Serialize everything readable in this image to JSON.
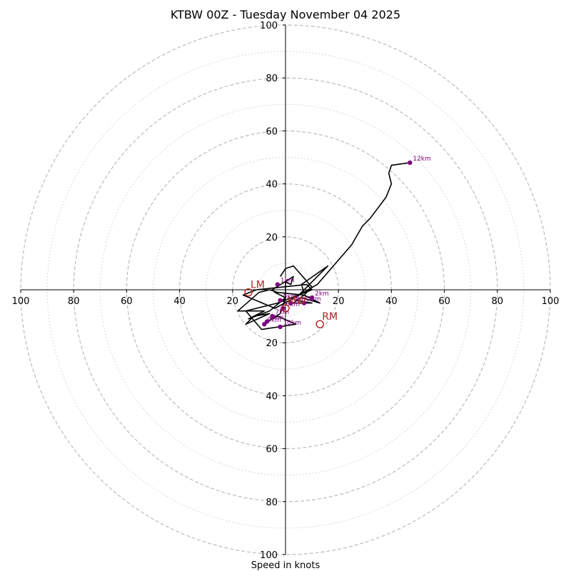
{
  "chart_data": {
    "type": "hodograph",
    "title": "KTBW 00Z - Tuesday November 04 2025",
    "xlabel": "Speed in knots",
    "rings": {
      "dashed": [
        20,
        40,
        60,
        80,
        100
      ],
      "dotted": [
        10,
        30,
        50,
        70,
        90
      ]
    },
    "axis_max": 100,
    "ticks": {
      "x": [
        -100,
        -80,
        -60,
        -40,
        -20,
        20,
        40,
        60,
        80,
        100
      ],
      "x_labels": [
        "100",
        "80",
        "60",
        "40",
        "20",
        "20",
        "40",
        "60",
        "80",
        "100"
      ],
      "y": [
        100,
        80,
        60,
        40,
        20,
        -20,
        -40,
        -60,
        -80,
        -100
      ],
      "y_labels": [
        "100",
        "80",
        "60",
        "40",
        "20",
        "20",
        "40",
        "60",
        "80",
        "100"
      ]
    },
    "hodograph": {
      "u": [
        -2,
        0,
        3,
        10,
        7,
        3,
        10,
        4,
        6,
        13,
        7,
        -3,
        -6,
        -10,
        -18,
        -8,
        -12,
        -15,
        -6,
        -12,
        -14,
        -6,
        0,
        0,
        2,
        3,
        -5,
        -4,
        0,
        -1,
        -2,
        -7,
        -3,
        4,
        -9,
        -15,
        -3,
        10,
        8,
        -11,
        -16,
        -4,
        7,
        6,
        16,
        5,
        12,
        25,
        29,
        32,
        38,
        40,
        39,
        40,
        47
      ],
      "v": [
        5,
        8,
        9,
        1,
        -2,
        -5,
        -5,
        -4,
        -3,
        -5,
        -2,
        -1,
        0,
        -1,
        -8,
        -8,
        -10,
        -13,
        -9,
        -10,
        -11,
        -8,
        -3,
        3,
        2,
        5,
        0,
        -1,
        -3,
        -6,
        -9,
        -12,
        -10,
        -13,
        -15,
        -8,
        -5,
        0,
        2,
        0,
        -2,
        -7,
        -1,
        2,
        9,
        -2,
        2,
        17,
        24,
        27,
        35,
        40,
        44,
        47,
        48
      ]
    },
    "height_markers": [
      {
        "label": "12km",
        "u": 47,
        "v": 48
      },
      {
        "label": "1km",
        "u": -3,
        "v": 2
      },
      {
        "label": "2km",
        "u": 10,
        "v": -3
      },
      {
        "label": "3km",
        "u": 7,
        "v": -5
      },
      {
        "label": "4km",
        "u": 2,
        "v": -5
      },
      {
        "label": "5km",
        "u": -2,
        "v": -4
      },
      {
        "label": "6km",
        "u": -1,
        "v": -7
      },
      {
        "label": "7km",
        "u": -5,
        "v": -10
      },
      {
        "label": "8km",
        "u": -7,
        "v": -12
      },
      {
        "label": "9km",
        "u": -8,
        "v": -13
      },
      {
        "label": "10km",
        "u": -2,
        "v": -14
      }
    ],
    "storm_motion": [
      {
        "label": "LM",
        "u": -14,
        "v": -1
      },
      {
        "label": "RM",
        "u": 13,
        "v": -13
      },
      {
        "label": "MW",
        "u": 0,
        "v": -7
      }
    ],
    "colors": {
      "trace": "#000000",
      "marker": "#800080",
      "storm": "#b22222",
      "ring": "#bbbbbb"
    }
  }
}
